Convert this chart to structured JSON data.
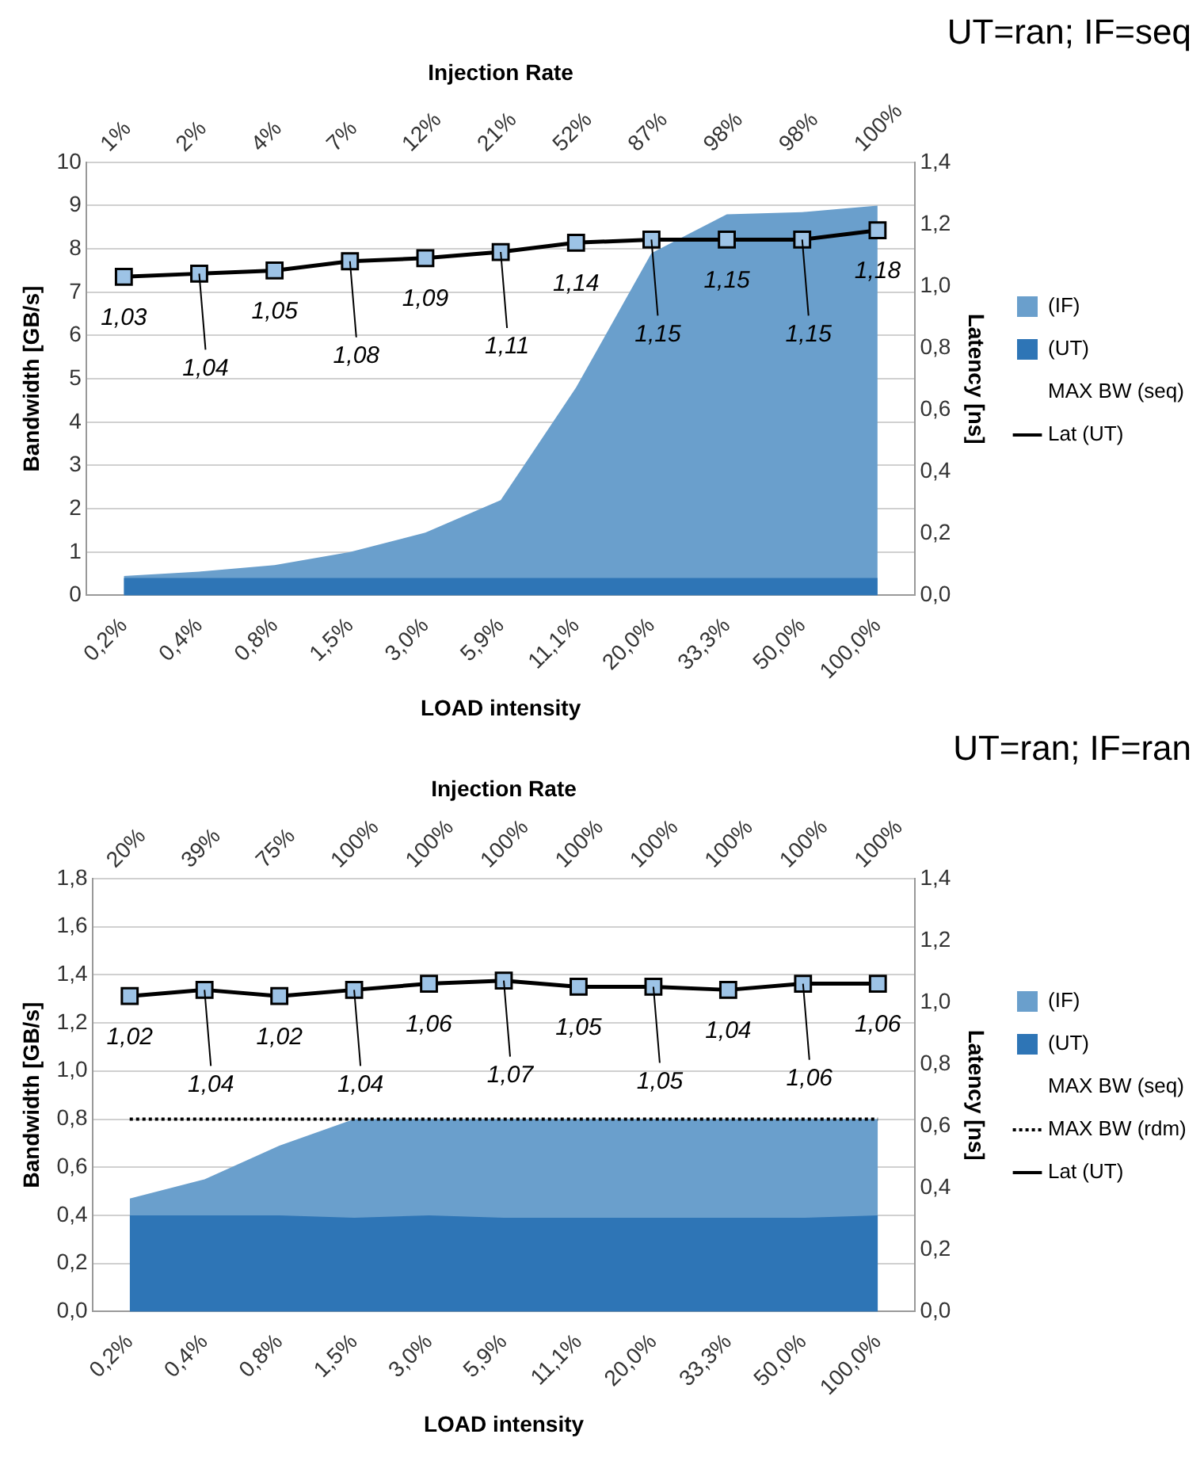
{
  "chart_data": [
    {
      "type": "area",
      "title": "UT=ran; IF=seq",
      "xlabel": "LOAD intensity",
      "x2label": "Injection Rate",
      "ylabel": "Bandwidth [GB/s]",
      "y2label": "Latency [ns]",
      "categories": [
        "0,2%",
        "0,4%",
        "0,8%",
        "1,5%",
        "3,0%",
        "5,9%",
        "11,1%",
        "20,0%",
        "33,3%",
        "50,0%",
        "100,0%"
      ],
      "annotations": [
        "1%",
        "2%",
        "4%",
        "7%",
        "12%",
        "21%",
        "52%",
        "87%",
        "98%",
        "98%",
        "100%"
      ],
      "series": [
        {
          "name": "(IF)",
          "color": "#6a9fcc",
          "values": [
            0.45,
            0.55,
            0.7,
            1.0,
            1.45,
            2.2,
            4.8,
            7.9,
            8.8,
            8.85,
            9.0
          ]
        },
        {
          "name": "(UT)",
          "color": "#2e75b6",
          "values": [
            0.4,
            0.4,
            0.4,
            0.4,
            0.4,
            0.4,
            0.4,
            0.4,
            0.4,
            0.4,
            0.4
          ]
        },
        {
          "name": "MAX BW (seq)",
          "type": "line",
          "marker": "none",
          "values": [
            null,
            null,
            null,
            null,
            null,
            null,
            null,
            null,
            null,
            null,
            null
          ]
        },
        {
          "name": "Lat (UT)",
          "type": "line",
          "axis": "y2",
          "color": "#000000",
          "marker": "square",
          "values": [
            1.03,
            1.04,
            1.05,
            1.08,
            1.09,
            1.11,
            1.14,
            1.15,
            1.15,
            1.15,
            1.18
          ],
          "value_labels": [
            "1,03",
            "1,04",
            "1,05",
            "1,08",
            "1,09",
            "1,11",
            "1,14",
            "1,15",
            "1,15",
            "1,15",
            "1,18"
          ]
        }
      ],
      "ylim": [
        0,
        10
      ],
      "yticks": [
        0,
        1,
        2,
        3,
        4,
        5,
        6,
        7,
        8,
        9,
        10
      ],
      "y2lim": [
        0,
        1.4
      ],
      "y2ticks": [
        {
          "value": 0,
          "label": "0,0"
        },
        {
          "value": 0.2,
          "label": "0,2"
        },
        {
          "value": 0.4,
          "label": "0,4"
        },
        {
          "value": 0.6,
          "label": "0,6"
        },
        {
          "value": 0.8,
          "label": "0,8"
        },
        {
          "value": 1.0,
          "label": "1,0"
        },
        {
          "value": 1.2,
          "label": "1,2"
        },
        {
          "value": 1.4,
          "label": "1,4"
        }
      ],
      "grid": "y",
      "legend": "right"
    },
    {
      "type": "area",
      "title": "UT=ran; IF=ran",
      "xlabel": "LOAD intensity",
      "x2label": "Injection Rate",
      "ylabel": "Bandwidth [GB/s]",
      "y2label": "Latency [ns]",
      "categories": [
        "0,2%",
        "0,4%",
        "0,8%",
        "1,5%",
        "3,0%",
        "5,9%",
        "11,1%",
        "20,0%",
        "33,3%",
        "50,0%",
        "100,0%"
      ],
      "annotations": [
        "20%",
        "39%",
        "75%",
        "100%",
        "100%",
        "100%",
        "100%",
        "100%",
        "100%",
        "100%",
        "100%"
      ],
      "series": [
        {
          "name": "(IF)",
          "color": "#6a9fcc",
          "values": [
            0.47,
            0.55,
            0.69,
            0.8,
            0.8,
            0.8,
            0.8,
            0.8,
            0.8,
            0.8,
            0.8
          ]
        },
        {
          "name": "(UT)",
          "color": "#2e75b6",
          "values": [
            0.4,
            0.4,
            0.4,
            0.39,
            0.4,
            0.39,
            0.39,
            0.39,
            0.39,
            0.39,
            0.4
          ]
        },
        {
          "name": "MAX BW (seq)",
          "type": "line",
          "marker": "none",
          "values": [
            null,
            null,
            null,
            null,
            null,
            null,
            null,
            null,
            null,
            null,
            null
          ]
        },
        {
          "name": "MAX BW (rdm)",
          "type": "line",
          "color": "#000000",
          "marker": "none",
          "line_style": "dotted",
          "values": [
            0.8,
            0.8,
            0.8,
            0.8,
            0.8,
            0.8,
            0.8,
            0.8,
            0.8,
            0.8,
            0.8
          ]
        },
        {
          "name": "Lat (UT)",
          "type": "line",
          "axis": "y2",
          "color": "#000000",
          "marker": "square",
          "values": [
            1.02,
            1.04,
            1.02,
            1.04,
            1.06,
            1.07,
            1.05,
            1.05,
            1.04,
            1.06,
            1.06
          ],
          "value_labels": [
            "1,02",
            "1,04",
            "1,02",
            "1,04",
            "1,06",
            "1,07",
            "1,05",
            "1,05",
            "1,04",
            "1,06",
            "1,06"
          ]
        }
      ],
      "ylim": [
        0,
        1.8
      ],
      "yticks": [
        {
          "value": 0,
          "label": "0,0"
        },
        {
          "value": 0.2,
          "label": "0,2"
        },
        {
          "value": 0.4,
          "label": "0,4"
        },
        {
          "value": 0.6,
          "label": "0,6"
        },
        {
          "value": 0.8,
          "label": "0,8"
        },
        {
          "value": 1.0,
          "label": "1,0"
        },
        {
          "value": 1.2,
          "label": "1,2"
        },
        {
          "value": 1.4,
          "label": "1,4"
        },
        {
          "value": 1.6,
          "label": "1,6"
        },
        {
          "value": 1.8,
          "label": "1,8"
        }
      ],
      "y2lim": [
        0,
        1.4
      ],
      "y2ticks": [
        {
          "value": 0,
          "label": "0,0"
        },
        {
          "value": 0.2,
          "label": "0,2"
        },
        {
          "value": 0.4,
          "label": "0,4"
        },
        {
          "value": 0.6,
          "label": "0,6"
        },
        {
          "value": 0.8,
          "label": "0,8"
        },
        {
          "value": 1.0,
          "label": "1,0"
        },
        {
          "value": 1.2,
          "label": "1,2"
        },
        {
          "value": 1.4,
          "label": "1,4"
        }
      ],
      "grid": "y",
      "legend": "right"
    }
  ]
}
